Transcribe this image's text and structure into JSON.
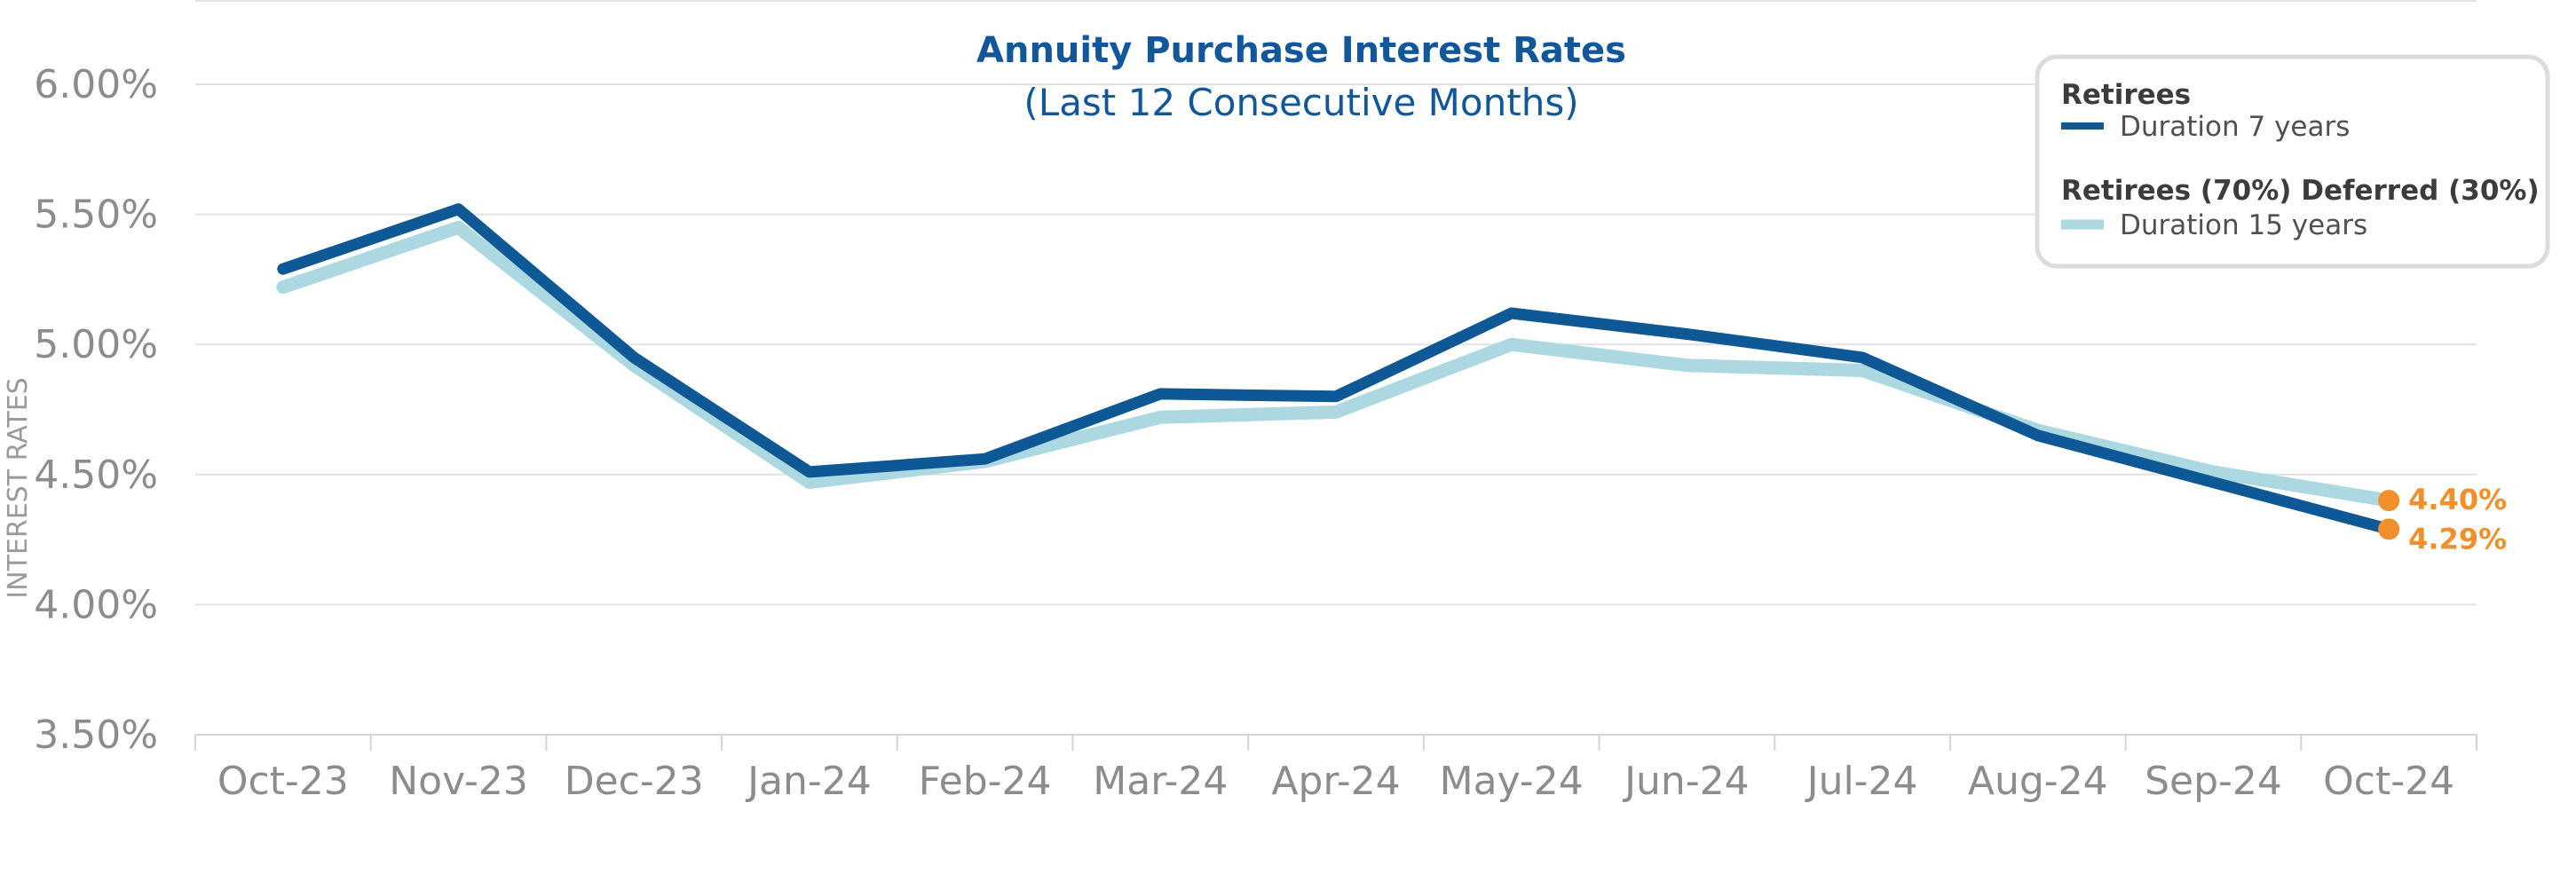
{
  "chart_data": {
    "type": "line",
    "title": "Annuity Purchase Interest Rates",
    "subtitle": "(Last 12 Consecutive Months)",
    "ylabel": "INTEREST RATES",
    "xlabel": "",
    "categories": [
      "Oct-23",
      "Nov-23",
      "Dec-23",
      "Jan-24",
      "Feb-24",
      "Mar-24",
      "Apr-24",
      "May-24",
      "Jun-24",
      "Jul-24",
      "Aug-24",
      "Sep-24",
      "Oct-24"
    ],
    "ylim": [
      3.5,
      6.0
    ],
    "yticks": [
      3.5,
      4.0,
      4.5,
      5.0,
      5.5,
      6.0
    ],
    "ytick_labels": [
      "3.50%",
      "4.00%",
      "4.50%",
      "5.00%",
      "5.50%",
      "6.00%"
    ],
    "grid": true,
    "legend_position": "top-right",
    "series": [
      {
        "group": "Retirees",
        "name": "Duration 7 years",
        "color": "#0f5896",
        "values": [
          5.29,
          5.52,
          4.95,
          4.51,
          4.56,
          4.81,
          4.8,
          5.12,
          5.04,
          4.95,
          4.65,
          4.47,
          4.29
        ],
        "end_label": "4.29%"
      },
      {
        "group": "Retirees (70%) Deferred (30%)",
        "name": "Duration 15 years",
        "color": "#acd9e1",
        "values": [
          5.22,
          5.45,
          4.92,
          4.47,
          4.55,
          4.72,
          4.74,
          5.0,
          4.92,
          4.9,
          4.67,
          4.51,
          4.4
        ],
        "end_label": "4.40%"
      }
    ],
    "marker_color": "#f0902a"
  }
}
